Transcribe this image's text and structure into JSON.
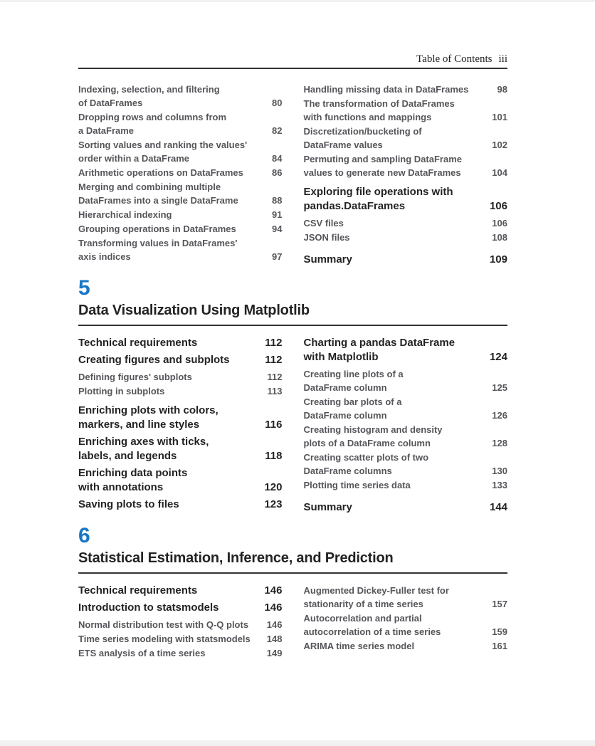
{
  "header": {
    "title": "Table of Contents",
    "page_number": "iii"
  },
  "colors": {
    "chapter_number_blue": "#1877c5",
    "heading_text": "#232323",
    "entry_text": "#55565a",
    "rule": "#333333"
  },
  "sections": [
    {
      "type": "continuation",
      "columns": {
        "left": [
          {
            "text": "Indexing, selection, and filtering\nof DataFrames",
            "page": "80",
            "style": "sub"
          },
          {
            "text": "Dropping rows and columns from\na DataFrame",
            "page": "82",
            "style": "sub"
          },
          {
            "text": "Sorting values and ranking the values'\norder within a DataFrame",
            "page": "84",
            "style": "sub"
          },
          {
            "text": "Arithmetic operations on DataFrames",
            "page": "86",
            "style": "sub"
          },
          {
            "text": "Merging and combining multiple\nDataFrames into a single DataFrame",
            "page": "88",
            "style": "sub"
          },
          {
            "text": "Hierarchical indexing",
            "page": "91",
            "style": "sub"
          },
          {
            "text": "Grouping operations in DataFrames",
            "page": "94",
            "style": "sub"
          },
          {
            "text": "Transforming values in DataFrames'\naxis indices",
            "page": "97",
            "style": "sub"
          }
        ],
        "right": [
          {
            "text": "Handling missing data in DataFrames",
            "page": "98",
            "style": "sub"
          },
          {
            "text": "The transformation of DataFrames\nwith functions and mappings",
            "page": "101",
            "style": "sub"
          },
          {
            "text": "Discretization/bucketing of\nDataFrame values",
            "page": "102",
            "style": "sub"
          },
          {
            "text": "Permuting and sampling DataFrame\nvalues to generate new DataFrames",
            "page": "104",
            "style": "sub"
          },
          {
            "text": "Exploring file operations with\npandas.DataFrames",
            "page": "106",
            "style": "section"
          },
          {
            "text": "CSV files",
            "page": "106",
            "style": "sub"
          },
          {
            "text": "JSON files",
            "page": "108",
            "style": "sub"
          },
          {
            "text": "Summary",
            "page": "109",
            "style": "section summary"
          }
        ]
      }
    },
    {
      "type": "chapter",
      "number": "5",
      "title": "Data Visualization Using Matplotlib",
      "columns": {
        "left": [
          {
            "text": "Technical requirements",
            "page": "112",
            "style": "section"
          },
          {
            "text": "Creating figures and subplots",
            "page": "112",
            "style": "section"
          },
          {
            "text": "Defining figures' subplots",
            "page": "112",
            "style": "sub"
          },
          {
            "text": "Plotting in subplots",
            "page": "113",
            "style": "sub"
          },
          {
            "text": "Enriching plots with colors,\nmarkers, and line styles",
            "page": "116",
            "style": "section"
          },
          {
            "text": "Enriching axes with ticks,\nlabels, and legends",
            "page": "118",
            "style": "section"
          },
          {
            "text": "Enriching data points\nwith annotations",
            "page": "120",
            "style": "section"
          },
          {
            "text": "Saving plots to files",
            "page": "123",
            "style": "section"
          }
        ],
        "right": [
          {
            "text": "Charting a pandas DataFrame\nwith Matplotlib",
            "page": "124",
            "style": "section"
          },
          {
            "text": "Creating line plots of a\nDataFrame column",
            "page": "125",
            "style": "sub"
          },
          {
            "text": "Creating bar plots of a\nDataFrame column",
            "page": "126",
            "style": "sub"
          },
          {
            "text": "Creating histogram and density\nplots of a DataFrame column",
            "page": "128",
            "style": "sub"
          },
          {
            "text": "Creating scatter plots of two\nDataFrame columns",
            "page": "130",
            "style": "sub"
          },
          {
            "text": "Plotting time series data",
            "page": "133",
            "style": "sub"
          },
          {
            "text": "Summary",
            "page": "144",
            "style": "section summary"
          }
        ]
      }
    },
    {
      "type": "chapter",
      "number": "6",
      "title": "Statistical Estimation, Inference, and Prediction",
      "columns": {
        "left": [
          {
            "text": "Technical requirements",
            "page": "146",
            "style": "section"
          },
          {
            "text": "Introduction to statsmodels",
            "page": "146",
            "style": "section"
          },
          {
            "text": "Normal distribution test with Q-Q plots",
            "page": "146",
            "style": "sub"
          },
          {
            "text": "Time series modeling with statsmodels",
            "page": "148",
            "style": "sub"
          },
          {
            "text": "ETS analysis of a time series",
            "page": "149",
            "style": "sub"
          }
        ],
        "right": [
          {
            "text": "Augmented Dickey-Fuller test for\nstationarity of a time series",
            "page": "157",
            "style": "sub"
          },
          {
            "text": "Autocorrelation and partial\nautocorrelation of a time series",
            "page": "159",
            "style": "sub"
          },
          {
            "text": "ARIMA time series model",
            "page": "161",
            "style": "sub"
          }
        ]
      }
    }
  ]
}
